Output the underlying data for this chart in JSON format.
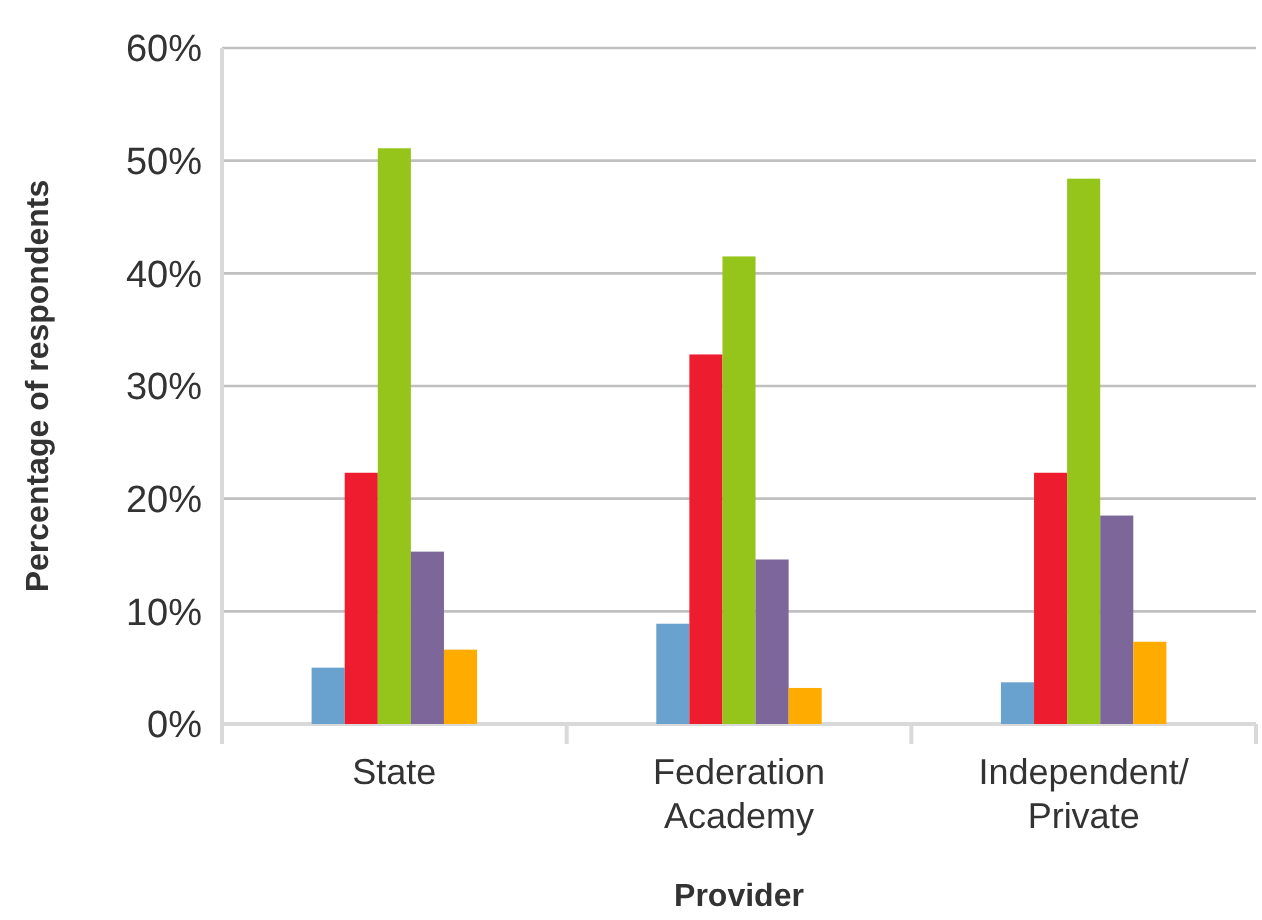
{
  "chart_data": {
    "type": "bar",
    "xlabel": "Provider",
    "ylabel": "Percentage of respondents",
    "categories": [
      "State",
      "Federation Academy",
      "Independent/ Private"
    ],
    "series": [
      {
        "color": "#6aa2cf",
        "values": [
          5.0,
          8.9,
          3.7
        ]
      },
      {
        "color": "#ed1c2e",
        "values": [
          22.3,
          32.8,
          22.3
        ]
      },
      {
        "color": "#95c41a",
        "values": [
          51.1,
          41.5,
          48.4
        ]
      },
      {
        "color": "#7d6699",
        "values": [
          15.3,
          14.6,
          18.5
        ]
      },
      {
        "color": "#ffab00",
        "values": [
          6.6,
          3.2,
          7.3
        ]
      }
    ],
    "ylim": [
      0,
      60
    ],
    "yticks": [
      {
        "value": 0,
        "label": "0%"
      },
      {
        "value": 10,
        "label": "10%"
      },
      {
        "value": 20,
        "label": "20%"
      },
      {
        "value": 30,
        "label": "30%"
      },
      {
        "value": 40,
        "label": "40%"
      },
      {
        "value": 50,
        "label": "50%"
      },
      {
        "value": 60,
        "label": "60%"
      }
    ],
    "grid": "y"
  }
}
